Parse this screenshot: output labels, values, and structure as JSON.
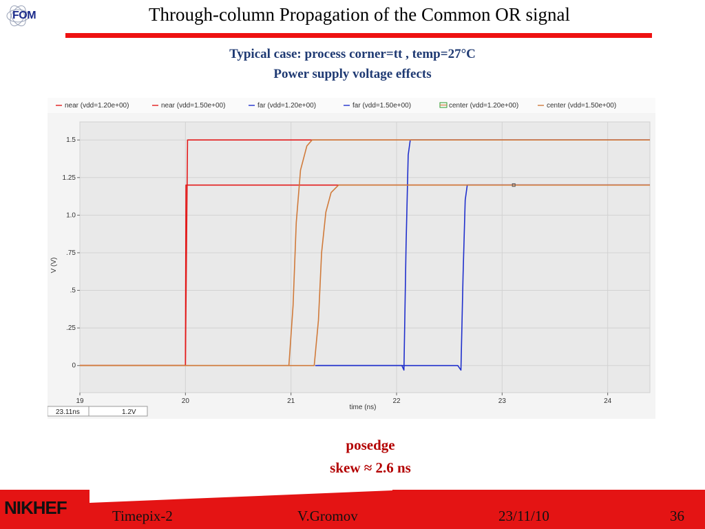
{
  "header": {
    "logo_text": "FOM",
    "title": "Through-column Propagation of the Common OR signal",
    "subtitle_line1": "Typical case: process corner=tt , temp=27°C",
    "subtitle_line2": "Power supply voltage effects"
  },
  "colors": {
    "rule": "#ee1111",
    "near": "#e31a1a",
    "far": "#1f2fcc",
    "center": "#d07a3a",
    "subtitle": "#1f3a73",
    "note": "#b30000"
  },
  "chart_data": {
    "type": "line",
    "xlabel": "time (ns)",
    "ylabel": "V (V)",
    "xlim": [
      19,
      24.4
    ],
    "ylim": [
      -0.18,
      1.62
    ],
    "xticks": [
      19,
      20,
      21,
      22,
      23,
      24
    ],
    "xtick_labels": [
      "19",
      "20",
      "21",
      "22",
      "23",
      "24"
    ],
    "yticks": [
      0,
      0.25,
      0.5,
      0.75,
      1.0,
      1.25,
      1.5
    ],
    "ytick_labels": [
      "0",
      ".25",
      ".5",
      ".75",
      "1.0",
      "1.25",
      "1.5"
    ],
    "grid": true,
    "legend_position": "top",
    "legend": [
      "near (vdd=1.20e+00)",
      "near (vdd=1.50e+00)",
      "far (vdd=1.20e+00)",
      "far (vdd=1.50e+00)",
      "center (vdd=1.20e+00)",
      "center (vdd=1.50e+00)"
    ],
    "series": [
      {
        "name": "near (vdd=1.20e+00)",
        "color": "#e31a1a",
        "x": [
          19,
          20.0,
          20.005,
          24.4
        ],
        "y": [
          0,
          0,
          1.2,
          1.2
        ]
      },
      {
        "name": "near (vdd=1.50e+00)",
        "color": "#e31a1a",
        "x": [
          19,
          20.0,
          20.02,
          24.4
        ],
        "y": [
          0,
          0,
          1.5,
          1.5
        ]
      },
      {
        "name": "far (vdd=1.20e+00)",
        "color": "#1f2fcc",
        "x": [
          21.23,
          22.58,
          22.61,
          22.63,
          22.65,
          22.67,
          24.4
        ],
        "y": [
          0,
          0,
          -0.03,
          0.6,
          1.1,
          1.2,
          1.2
        ]
      },
      {
        "name": "far (vdd=1.50e+00)",
        "color": "#1f2fcc",
        "x": [
          21.25,
          22.05,
          22.07,
          22.09,
          22.11,
          22.13,
          24.4
        ],
        "y": [
          0,
          0,
          -0.03,
          0.8,
          1.4,
          1.5,
          1.5
        ]
      },
      {
        "name": "center (vdd=1.20e+00)",
        "color": "#d07a3a",
        "x": [
          19,
          21.22,
          21.26,
          21.29,
          21.33,
          21.38,
          21.45,
          24.4
        ],
        "y": [
          0,
          0,
          0.3,
          0.75,
          1.02,
          1.15,
          1.2,
          1.2
        ]
      },
      {
        "name": "center (vdd=1.50e+00)",
        "color": "#d07a3a",
        "x": [
          19,
          20.98,
          21.02,
          21.05,
          21.09,
          21.15,
          21.2,
          24.4
        ],
        "y": [
          0,
          0,
          0.4,
          0.95,
          1.3,
          1.46,
          1.5,
          1.5
        ]
      }
    ],
    "marker": {
      "x": 23.11,
      "y": 1.2
    },
    "readout_x": "23.11ns",
    "readout_y": "1.2V"
  },
  "notes": {
    "line1": "posedge",
    "line2": "skew ≈ 2.6 ns"
  },
  "footer": {
    "logo_text": "NIKHEF",
    "project": "Timepix-2",
    "author": "V.Gromov",
    "date": "23/11/10",
    "page": "36"
  }
}
